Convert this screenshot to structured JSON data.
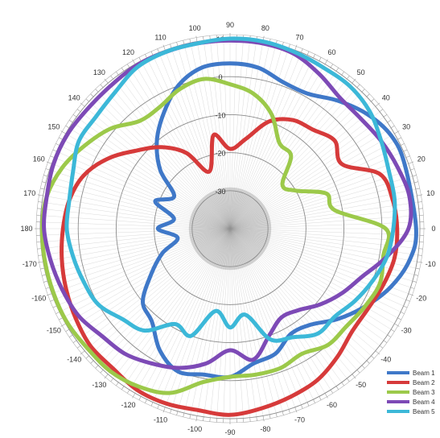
{
  "chart_data": {
    "type": "polar-line",
    "title": "",
    "angle_ticks": [
      "90",
      "80",
      "70",
      "60",
      "50",
      "40",
      "30",
      "20",
      "10",
      "0",
      "-10",
      "-20",
      "-30",
      "-40",
      "-50",
      "-60",
      "-70",
      "-80",
      "-90",
      "-100",
      "-110",
      "-120",
      "-130",
      "-140",
      "-150",
      "-160",
      "-170",
      "180",
      "170",
      "160",
      "150",
      "140",
      "130",
      "120",
      "110",
      "100"
    ],
    "angle_tick_values": [
      90,
      80,
      70,
      60,
      50,
      40,
      30,
      20,
      10,
      0,
      -10,
      -20,
      -30,
      -40,
      -50,
      -60,
      -70,
      -80,
      -90,
      -100,
      -110,
      -120,
      -130,
      -140,
      -150,
      -160,
      -170,
      180,
      170,
      160,
      150,
      140,
      130,
      120,
      110,
      100
    ],
    "radial_ticks": [
      "10",
      "0",
      "-10",
      "-20",
      "-30"
    ],
    "radial_tick_values": [
      10,
      0,
      -10,
      -20,
      -30
    ],
    "rlim": [
      -40,
      10
    ],
    "legend_placement": "bottom-right",
    "series": [
      {
        "name": "Beam 1",
        "color": "#3f78c8",
        "points": [
          [
            0,
            9
          ],
          [
            20,
            9
          ],
          [
            30,
            9
          ],
          [
            40,
            7
          ],
          [
            50,
            4
          ],
          [
            60,
            1
          ],
          [
            70,
            1
          ],
          [
            80,
            3
          ],
          [
            90,
            3.5
          ],
          [
            100,
            3
          ],
          [
            110,
            0
          ],
          [
            120,
            -5
          ],
          [
            130,
            -10
          ],
          [
            140,
            -16
          ],
          [
            150,
            -23
          ],
          [
            160,
            -19
          ],
          [
            170,
            -25
          ],
          [
            180,
            -21
          ],
          [
            -170,
            -26
          ],
          [
            -160,
            -21
          ],
          [
            -150,
            -16
          ],
          [
            -140,
            -10
          ],
          [
            -130,
            -8
          ],
          [
            -120,
            -3
          ],
          [
            -110,
            0
          ],
          [
            -100,
            -1
          ],
          [
            -90,
            -1
          ],
          [
            -80,
            -4
          ],
          [
            -70,
            -5
          ],
          [
            -60,
            -8
          ],
          [
            -50,
            -7
          ],
          [
            -40,
            -3
          ],
          [
            -30,
            1
          ],
          [
            -20,
            5
          ],
          [
            -10,
            8
          ]
        ]
      },
      {
        "name": "Beam 2",
        "color": "#d63a3a",
        "points": [
          [
            0,
            4
          ],
          [
            10,
            3.5
          ],
          [
            20,
            2
          ],
          [
            30,
            -6
          ],
          [
            40,
            -4
          ],
          [
            50,
            -6
          ],
          [
            60,
            -7
          ],
          [
            70,
            -10
          ],
          [
            80,
            -16
          ],
          [
            90,
            -19
          ],
          [
            100,
            -15
          ],
          [
            110,
            -24
          ],
          [
            120,
            -17
          ],
          [
            130,
            -12
          ],
          [
            140,
            -8
          ],
          [
            150,
            -3
          ],
          [
            160,
            1
          ],
          [
            170,
            3
          ],
          [
            180,
            4
          ],
          [
            -170,
            5
          ],
          [
            -160,
            6
          ],
          [
            -150,
            7
          ],
          [
            -140,
            8
          ],
          [
            -130,
            8
          ],
          [
            -120,
            9
          ],
          [
            -110,
            9
          ],
          [
            -100,
            8.5
          ],
          [
            -90,
            9
          ],
          [
            -80,
            8
          ],
          [
            -70,
            7
          ],
          [
            -60,
            6
          ],
          [
            -50,
            4
          ],
          [
            -40,
            2
          ],
          [
            -30,
            2
          ],
          [
            -20,
            3
          ],
          [
            -10,
            4
          ]
        ]
      },
      {
        "name": "Beam 3",
        "color": "#9cc94a",
        "points": [
          [
            0,
            1
          ],
          [
            10,
            -12
          ],
          [
            20,
            -13
          ],
          [
            30,
            -20
          ],
          [
            40,
            -22
          ],
          [
            50,
            -15
          ],
          [
            60,
            -14
          ],
          [
            70,
            -8
          ],
          [
            80,
            -4
          ],
          [
            90,
            -2
          ],
          [
            100,
            0
          ],
          [
            110,
            -1
          ],
          [
            120,
            -3
          ],
          [
            130,
            -3
          ],
          [
            140,
            1
          ],
          [
            150,
            4
          ],
          [
            160,
            7
          ],
          [
            170,
            9
          ],
          [
            180,
            9.5
          ],
          [
            -170,
            9.5
          ],
          [
            -160,
            9.5
          ],
          [
            -150,
            9.5
          ],
          [
            -140,
            9
          ],
          [
            -130,
            9
          ],
          [
            -120,
            8
          ],
          [
            -110,
            6
          ],
          [
            -100,
            1
          ],
          [
            -90,
            -1
          ],
          [
            -80,
            -1
          ],
          [
            -70,
            -1
          ],
          [
            -60,
            -2
          ],
          [
            -50,
            0
          ],
          [
            -40,
            0
          ],
          [
            -30,
            1
          ],
          [
            -20,
            2
          ],
          [
            -10,
            1
          ]
        ]
      },
      {
        "name": "Beam 4",
        "color": "#7d4ab6",
        "points": [
          [
            0,
            7
          ],
          [
            10,
            8
          ],
          [
            20,
            7
          ],
          [
            30,
            6
          ],
          [
            40,
            5
          ],
          [
            50,
            5
          ],
          [
            60,
            7
          ],
          [
            70,
            9
          ],
          [
            80,
            9.5
          ],
          [
            90,
            9.5
          ],
          [
            100,
            9.5
          ],
          [
            110,
            9.5
          ],
          [
            120,
            9.5
          ],
          [
            130,
            9
          ],
          [
            140,
            9
          ],
          [
            150,
            9.5
          ],
          [
            160,
            9.5
          ],
          [
            170,
            9
          ],
          [
            180,
            9
          ],
          [
            -170,
            8
          ],
          [
            -160,
            7
          ],
          [
            -150,
            6
          ],
          [
            -140,
            4
          ],
          [
            -130,
            3
          ],
          [
            -120,
            1
          ],
          [
            -110,
            -1
          ],
          [
            -100,
            -4
          ],
          [
            -90,
            -8
          ],
          [
            -80,
            -5
          ],
          [
            -70,
            -10
          ],
          [
            -60,
            -13
          ],
          [
            -50,
            -12
          ],
          [
            -40,
            -9
          ],
          [
            -30,
            -6
          ],
          [
            -20,
            -3
          ],
          [
            -10,
            2
          ]
        ]
      },
      {
        "name": "Beam 5",
        "color": "#3cb8d8",
        "points": [
          [
            0,
            3
          ],
          [
            10,
            4
          ],
          [
            20,
            4.5
          ],
          [
            30,
            6
          ],
          [
            40,
            8
          ],
          [
            50,
            9
          ],
          [
            60,
            9
          ],
          [
            70,
            9.5
          ],
          [
            80,
            10
          ],
          [
            90,
            10
          ],
          [
            100,
            9.5
          ],
          [
            110,
            9.5
          ],
          [
            120,
            9
          ],
          [
            130,
            7
          ],
          [
            140,
            6
          ],
          [
            150,
            6
          ],
          [
            160,
            4
          ],
          [
            170,
            3
          ],
          [
            180,
            3
          ],
          [
            -170,
            2
          ],
          [
            -160,
            1
          ],
          [
            -150,
            0
          ],
          [
            -140,
            -3
          ],
          [
            -130,
            -5
          ],
          [
            -120,
            -11
          ],
          [
            -110,
            -10
          ],
          [
            -100,
            -18
          ],
          [
            -90,
            -14
          ],
          [
            -80,
            -17
          ],
          [
            -70,
            -9
          ],
          [
            -60,
            -7
          ],
          [
            -50,
            -4
          ],
          [
            -40,
            -4
          ],
          [
            -30,
            -2
          ],
          [
            -20,
            0
          ],
          [
            -10,
            2
          ]
        ]
      }
    ]
  }
}
